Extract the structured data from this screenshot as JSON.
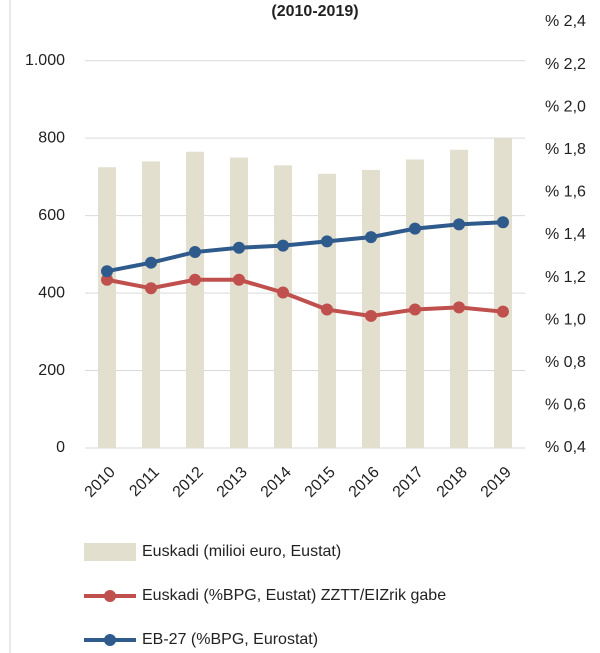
{
  "chart_data": {
    "type": "bar_line",
    "title": "(2010-2019)",
    "categories": [
      "2010",
      "2011",
      "2012",
      "2013",
      "2014",
      "2015",
      "2016",
      "2017",
      "2018",
      "2019"
    ],
    "series": [
      {
        "name": "Euskadi (milioi euro, Eustat)",
        "type": "bar",
        "color": "#e3dfcf",
        "values": [
          725,
          740,
          765,
          750,
          730,
          708,
          718,
          745,
          770,
          800
        ]
      },
      {
        "name": "Euskadi (%BPG, Eustat) ZZTT/EIZrik gabe",
        "type": "line",
        "axis": "y2",
        "color": "#c0504d",
        "values": [
          1.19,
          1.15,
          1.19,
          1.19,
          1.13,
          1.05,
          1.02,
          1.05,
          1.06,
          1.04
        ]
      },
      {
        "name": "EB-27 (%BPG, Eurostat)",
        "type": "line",
        "axis": "y2",
        "color": "#2e5a8c",
        "values": [
          1.23,
          1.27,
          1.32,
          1.34,
          1.35,
          1.37,
          1.39,
          1.43,
          1.45,
          1.46
        ]
      }
    ],
    "ylim": [
      0,
      1100
    ],
    "yticks": [
      0,
      200,
      400,
      600,
      800,
      {
        "value": 1000,
        "label": "1.000"
      }
    ],
    "y2lim": [
      0.4,
      2.4
    ],
    "y2ticks": [
      {
        "value": 2.4,
        "label": "% 2,4"
      },
      {
        "value": 2.2,
        "label": "% 2,2"
      },
      {
        "value": 2.0,
        "label": "% 2,0"
      },
      {
        "value": 1.8,
        "label": "% 1,8"
      },
      {
        "value": 1.6,
        "label": "% 1,6"
      },
      {
        "value": 1.4,
        "label": "% 1,4"
      },
      {
        "value": 1.2,
        "label": "% 1,2"
      },
      {
        "value": 1.0,
        "label": "% 1,0"
      },
      {
        "value": 0.8,
        "label": "% 0,8"
      },
      {
        "value": 0.6,
        "label": "% 0,6"
      },
      {
        "value": 0.4,
        "label": "% 0,4"
      }
    ],
    "grid": true
  }
}
